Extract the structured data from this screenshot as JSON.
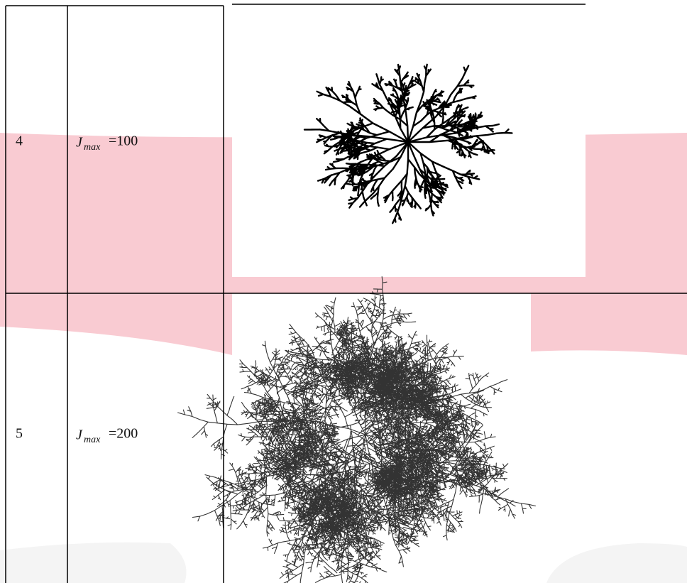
{
  "table": {
    "rows": [
      {
        "number": "4",
        "symbol": "J",
        "subscript": "max",
        "value": "=100"
      },
      {
        "number": "5",
        "symbol": "J",
        "subscript": "max",
        "value": "=200"
      }
    ]
  }
}
